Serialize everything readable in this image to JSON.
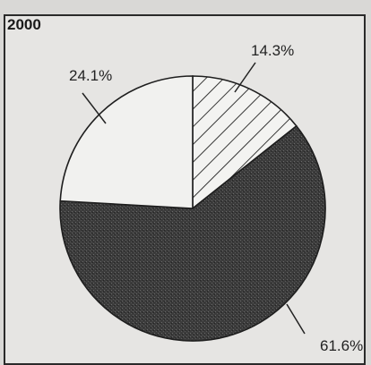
{
  "chart_data": {
    "type": "pie",
    "title": "2000",
    "slices": [
      {
        "label": "14.3%",
        "value": 14.3,
        "fill": "hatch"
      },
      {
        "label": "61.6%",
        "value": 61.6,
        "fill": "dark-stipple"
      },
      {
        "label": "24.1%",
        "value": 24.1,
        "fill": "white"
      }
    ],
    "start_angle_deg": 0,
    "direction": "clockwise",
    "colors": {
      "outline": "#1e1e1e",
      "dark": "#3a3a3a",
      "light": "#f1f1ef"
    }
  }
}
